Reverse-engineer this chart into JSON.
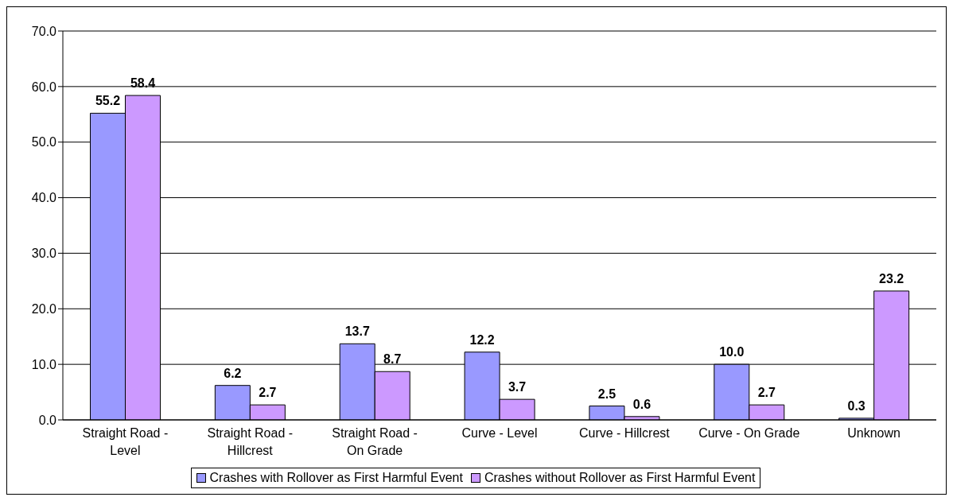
{
  "chart_data": {
    "type": "bar",
    "categories": [
      "Straight Road - Level",
      "Straight Road - Hillcrest",
      "Straight Road - On Grade",
      "Curve - Level",
      "Curve - Hillcrest",
      "Curve - On Grade",
      "Unknown"
    ],
    "series": [
      {
        "name": "Crashes with Rollover as First Harmful Event",
        "color": "#9999ff",
        "values": [
          55.2,
          6.2,
          13.7,
          12.2,
          2.5,
          10.0,
          0.3
        ],
        "value_labels": [
          "55.2",
          "6.2",
          "13.7",
          "12.2",
          "2.5",
          "10.0",
          "0.3"
        ]
      },
      {
        "name": "Crashes without Rollover as First Harmful Event",
        "color": "#cc99ff",
        "values": [
          58.4,
          2.7,
          8.7,
          3.7,
          0.6,
          2.7,
          23.2
        ],
        "value_labels": [
          "58.4",
          "2.7",
          "8.7",
          "3.7",
          "0.6",
          "2.7",
          "23.2"
        ]
      }
    ],
    "ylim": [
      0,
      70
    ],
    "yticks": [
      {
        "value": 0,
        "label": "0.0"
      },
      {
        "value": 10,
        "label": "10.0"
      },
      {
        "value": 20,
        "label": "20.0"
      },
      {
        "value": 30,
        "label": "30.0"
      },
      {
        "value": 40,
        "label": "40.0"
      },
      {
        "value": 50,
        "label": "50.0"
      },
      {
        "value": 60,
        "label": "60.0"
      },
      {
        "value": 70,
        "label": "70.0"
      }
    ],
    "grid": "y",
    "legend": "bottom"
  }
}
